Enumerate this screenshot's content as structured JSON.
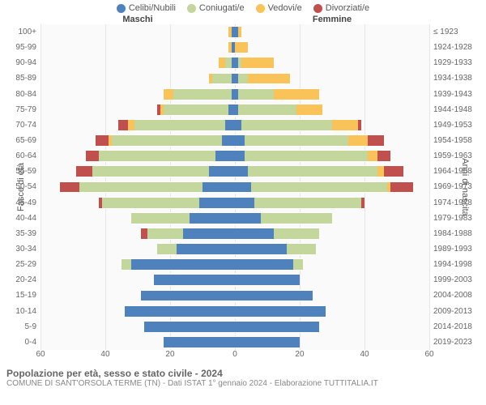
{
  "colors": {
    "celibi": "#4f81bd",
    "coniugati": "#c3d69b",
    "vedovi": "#f9c35a",
    "divorziati": "#c0504d",
    "grid": "#e6e6e6",
    "center": "#dddddd",
    "background": "#ffffff",
    "text": "#666666"
  },
  "legend": [
    {
      "label": "Celibi/Nubili",
      "color": "#4f81bd"
    },
    {
      "label": "Coniugati/e",
      "color": "#c3d69b"
    },
    {
      "label": "Vedovi/e",
      "color": "#f9c35a"
    },
    {
      "label": "Divorziati/e",
      "color": "#c0504d"
    }
  ],
  "headers": {
    "male": "Maschi",
    "female": "Femmine"
  },
  "axis_labels": {
    "left": "Fasce di età",
    "right": "Anni di nascita"
  },
  "x": {
    "min": 0,
    "max": 60,
    "ticks": [
      60,
      40,
      20,
      0,
      20,
      40,
      60
    ]
  },
  "age_labels": [
    "100+",
    "95-99",
    "90-94",
    "85-89",
    "80-84",
    "75-79",
    "70-74",
    "65-69",
    "60-64",
    "55-59",
    "50-54",
    "45-49",
    "40-44",
    "35-39",
    "30-34",
    "25-29",
    "20-24",
    "15-19",
    "10-14",
    "5-9",
    "0-4"
  ],
  "birth_labels": [
    "≤ 1923",
    "1924-1928",
    "1929-1933",
    "1934-1938",
    "1939-1943",
    "1944-1948",
    "1949-1953",
    "1954-1958",
    "1959-1963",
    "1964-1968",
    "1969-1973",
    "1974-1978",
    "1979-1983",
    "1984-1988",
    "1989-1993",
    "1994-1998",
    "1999-2003",
    "2004-2008",
    "2009-2013",
    "2014-2018",
    "2019-2023"
  ],
  "rows": [
    {
      "m": {
        "cel": 1,
        "con": 0,
        "ved": 1,
        "div": 0
      },
      "f": {
        "cel": 1,
        "con": 0,
        "ved": 1,
        "div": 0
      }
    },
    {
      "m": {
        "cel": 1,
        "con": 0,
        "ved": 1,
        "div": 0
      },
      "f": {
        "cel": 0,
        "con": 0,
        "ved": 4,
        "div": 0
      }
    },
    {
      "m": {
        "cel": 1,
        "con": 2,
        "ved": 2,
        "div": 0
      },
      "f": {
        "cel": 1,
        "con": 1,
        "ved": 10,
        "div": 0
      }
    },
    {
      "m": {
        "cel": 1,
        "con": 6,
        "ved": 1,
        "div": 0
      },
      "f": {
        "cel": 1,
        "con": 3,
        "ved": 13,
        "div": 0
      }
    },
    {
      "m": {
        "cel": 1,
        "con": 18,
        "ved": 3,
        "div": 0
      },
      "f": {
        "cel": 1,
        "con": 11,
        "ved": 14,
        "div": 0
      }
    },
    {
      "m": {
        "cel": 2,
        "con": 20,
        "ved": 1,
        "div": 1
      },
      "f": {
        "cel": 1,
        "con": 18,
        "ved": 8,
        "div": 0
      }
    },
    {
      "m": {
        "cel": 3,
        "con": 28,
        "ved": 2,
        "div": 3
      },
      "f": {
        "cel": 2,
        "con": 28,
        "ved": 8,
        "div": 1
      }
    },
    {
      "m": {
        "cel": 4,
        "con": 34,
        "ved": 1,
        "div": 4
      },
      "f": {
        "cel": 3,
        "con": 32,
        "ved": 6,
        "div": 5
      }
    },
    {
      "m": {
        "cel": 6,
        "con": 36,
        "ved": 0,
        "div": 4
      },
      "f": {
        "cel": 3,
        "con": 38,
        "ved": 3,
        "div": 4
      }
    },
    {
      "m": {
        "cel": 8,
        "con": 36,
        "ved": 0,
        "div": 5
      },
      "f": {
        "cel": 4,
        "con": 40,
        "ved": 2,
        "div": 6
      }
    },
    {
      "m": {
        "cel": 10,
        "con": 38,
        "ved": 0,
        "div": 6
      },
      "f": {
        "cel": 5,
        "con": 42,
        "ved": 1,
        "div": 7
      }
    },
    {
      "m": {
        "cel": 11,
        "con": 30,
        "ved": 0,
        "div": 1
      },
      "f": {
        "cel": 6,
        "con": 33,
        "ved": 0,
        "div": 1
      }
    },
    {
      "m": {
        "cel": 14,
        "con": 18,
        "ved": 0,
        "div": 0
      },
      "f": {
        "cel": 8,
        "con": 22,
        "ved": 0,
        "div": 0
      }
    },
    {
      "m": {
        "cel": 16,
        "con": 11,
        "ved": 0,
        "div": 2
      },
      "f": {
        "cel": 12,
        "con": 14,
        "ved": 0,
        "div": 0
      }
    },
    {
      "m": {
        "cel": 18,
        "con": 6,
        "ved": 0,
        "div": 0
      },
      "f": {
        "cel": 16,
        "con": 9,
        "ved": 0,
        "div": 0
      }
    },
    {
      "m": {
        "cel": 32,
        "con": 3,
        "ved": 0,
        "div": 0
      },
      "f": {
        "cel": 18,
        "con": 3,
        "ved": 0,
        "div": 0
      }
    },
    {
      "m": {
        "cel": 25,
        "con": 0,
        "ved": 0,
        "div": 0
      },
      "f": {
        "cel": 20,
        "con": 0,
        "ved": 0,
        "div": 0
      }
    },
    {
      "m": {
        "cel": 29,
        "con": 0,
        "ved": 0,
        "div": 0
      },
      "f": {
        "cel": 24,
        "con": 0,
        "ved": 0,
        "div": 0
      }
    },
    {
      "m": {
        "cel": 34,
        "con": 0,
        "ved": 0,
        "div": 0
      },
      "f": {
        "cel": 28,
        "con": 0,
        "ved": 0,
        "div": 0
      }
    },
    {
      "m": {
        "cel": 28,
        "con": 0,
        "ved": 0,
        "div": 0
      },
      "f": {
        "cel": 26,
        "con": 0,
        "ved": 0,
        "div": 0
      }
    },
    {
      "m": {
        "cel": 22,
        "con": 0,
        "ved": 0,
        "div": 0
      },
      "f": {
        "cel": 20,
        "con": 0,
        "ved": 0,
        "div": 0
      }
    }
  ],
  "title": "Popolazione per età, sesso e stato civile - 2024",
  "subtitle": "COMUNE DI SANT'ORSOLA TERME (TN) - Dati ISTAT 1° gennaio 2024 - Elaborazione TUTTITALIA.IT"
}
